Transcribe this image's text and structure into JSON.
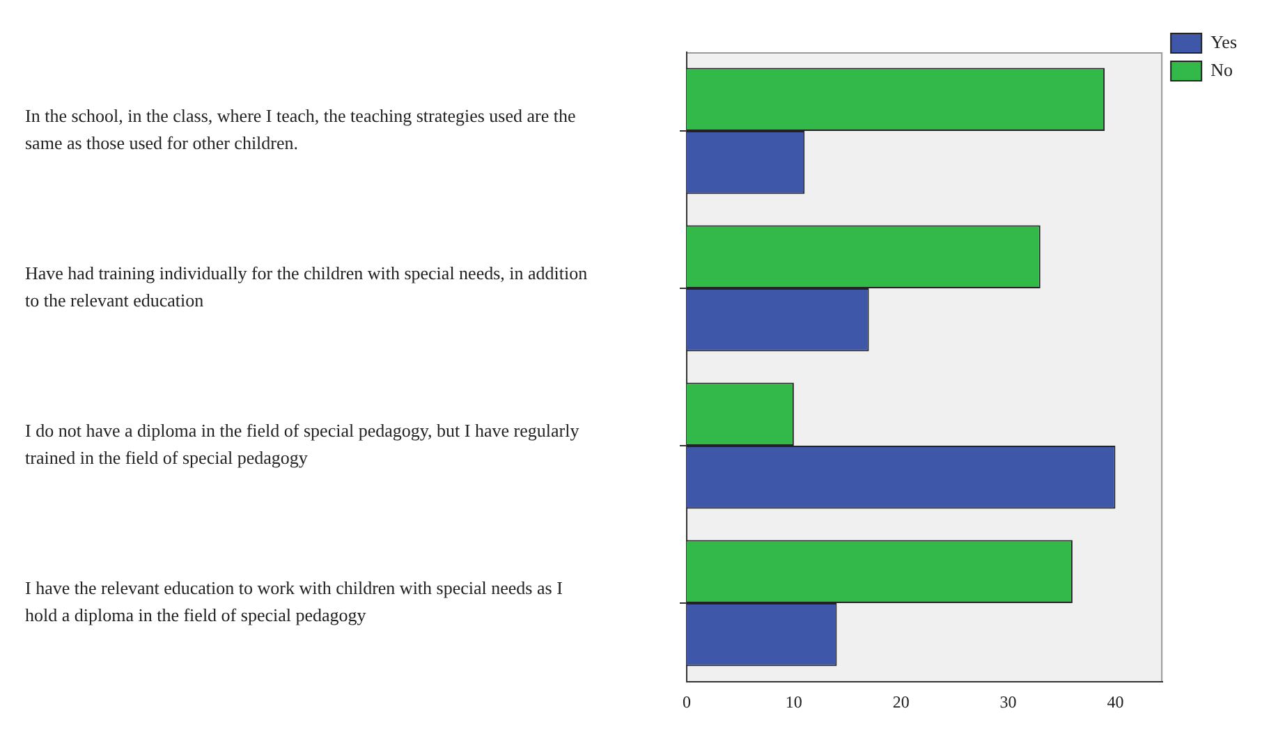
{
  "chart_data": {
    "type": "bar",
    "orientation": "horizontal",
    "categories": [
      "In the school, in the class, where I teach, the teaching strategies used are the same as those used for other children.",
      "Have had training individually for the children with special needs, in addition to the relevant education",
      "I do not have a diploma in the field of special pedagogy, but I have regularly trained in the field of special pedagogy",
      "I have the relevant education to work with children with special needs as I hold a diploma in the field of special pedagogy"
    ],
    "series": [
      {
        "name": "Yes",
        "color": "#3e57a8",
        "values": [
          11,
          17,
          40,
          14
        ]
      },
      {
        "name": "No",
        "color": "#32b94a",
        "values": [
          39,
          33,
          10,
          36
        ]
      }
    ],
    "xlim": [
      0,
      44.4
    ],
    "xticks": [
      0,
      10,
      20,
      30,
      40
    ],
    "grid": false,
    "legend": "top right"
  }
}
